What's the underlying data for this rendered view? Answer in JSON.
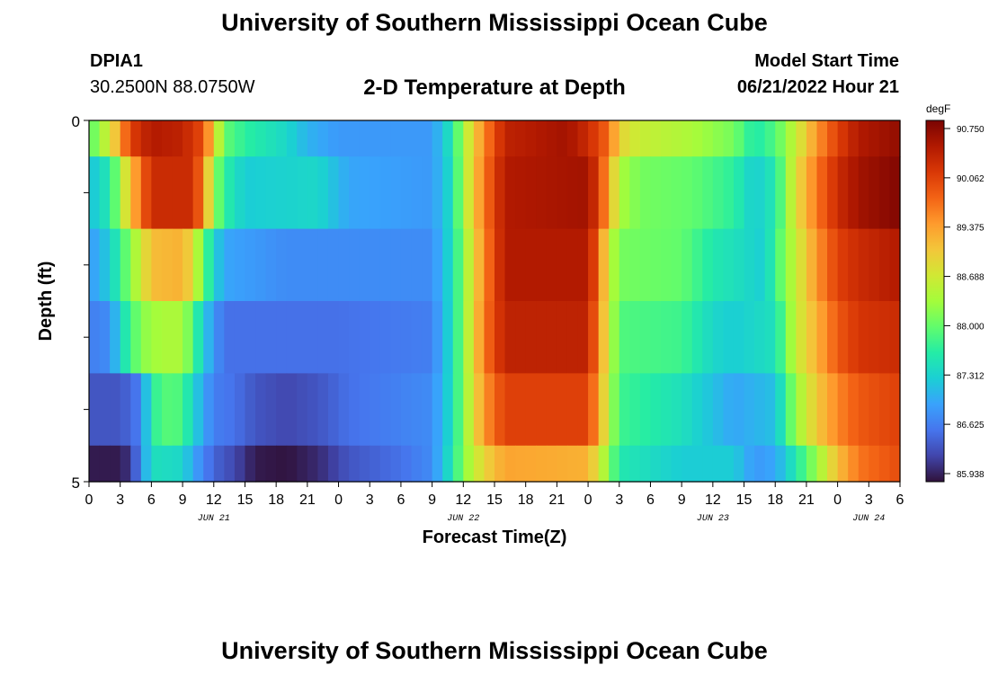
{
  "header": {
    "title": "University of Southern Mississippi Ocean Cube",
    "station_id": "DPIA1",
    "coordinates": "30.2500N  88.0750W",
    "model_start_label": "Model Start Time",
    "model_start_value": "06/21/2022 Hour 21"
  },
  "footer": {
    "title": "University of Southern Mississippi Ocean Cube"
  },
  "colors": {
    "colormap": [
      "#30123b",
      "#4145ab",
      "#4675ed",
      "#39a2fc",
      "#1bcfd4",
      "#24eca6",
      "#61fc6c",
      "#a4fc3b",
      "#d1e834",
      "#f3c63a",
      "#fe9b2d",
      "#f36315",
      "#d93806",
      "#b11901",
      "#7a0402"
    ]
  },
  "chart_data": {
    "type": "heatmap",
    "title": "2-D Temperature at Depth",
    "xlabel": "Forecast Time(Z)",
    "ylabel": "Depth (ft)",
    "colorbar_unit": "degF",
    "colorbar_ticks": [
      "90.750",
      "90.062",
      "89.375",
      "88.688",
      "88.000",
      "87.312",
      "86.625",
      "85.938"
    ],
    "value_range": [
      85.938,
      90.75
    ],
    "x_range_hours": [
      0,
      78
    ],
    "x_ticks": [
      "0",
      "3",
      "6",
      "9",
      "12",
      "15",
      "18",
      "21",
      "0",
      "3",
      "6",
      "9",
      "12",
      "15",
      "18",
      "21",
      "0",
      "3",
      "6",
      "9",
      "12",
      "15",
      "18",
      "21",
      "0",
      "3",
      "6"
    ],
    "date_labels": [
      {
        "text": "JUN 21",
        "hour": 12
      },
      {
        "text": "JUN 22",
        "hour": 36
      },
      {
        "text": "JUN 23",
        "hour": 60
      },
      {
        "text": "JUN 24",
        "hour": 75
      }
    ],
    "y_range_ft": [
      0,
      5
    ],
    "y_tick_labels": [
      {
        "text": "0",
        "depth": 0
      },
      {
        "text": "5",
        "depth": 5
      }
    ],
    "layer_edges_ft": [
      0,
      0.5,
      1.5,
      2.5,
      3.5,
      4.5,
      5
    ],
    "series": [
      {
        "name": "layer-1",
        "keyframes": [
          [
            0,
            87.9
          ],
          [
            2,
            88.7
          ],
          [
            4,
            90.0
          ],
          [
            6,
            90.4
          ],
          [
            9,
            90.3
          ],
          [
            11,
            89.9
          ],
          [
            13,
            88.0
          ],
          [
            15,
            87.7
          ],
          [
            19,
            87.4
          ],
          [
            21,
            87.1
          ],
          [
            24,
            86.9
          ],
          [
            33,
            86.9
          ],
          [
            35,
            87.6
          ],
          [
            36,
            88.4
          ],
          [
            38,
            89.5
          ],
          [
            40,
            90.3
          ],
          [
            46,
            90.5
          ],
          [
            48,
            90.2
          ],
          [
            50,
            89.7
          ],
          [
            51,
            88.9
          ],
          [
            53,
            88.6
          ],
          [
            58,
            88.4
          ],
          [
            62,
            88.1
          ],
          [
            64,
            87.6
          ],
          [
            66,
            87.9
          ],
          [
            68,
            88.6
          ],
          [
            70,
            89.4
          ],
          [
            72,
            90.0
          ],
          [
            74,
            90.4
          ],
          [
            78,
            90.6
          ]
        ]
      },
      {
        "name": "layer-2",
        "keyframes": [
          [
            0,
            87.2
          ],
          [
            2,
            87.6
          ],
          [
            4,
            89.1
          ],
          [
            6,
            90.2
          ],
          [
            10,
            90.2
          ],
          [
            11,
            89.5
          ],
          [
            12,
            88.3
          ],
          [
            13,
            87.7
          ],
          [
            15,
            87.3
          ],
          [
            22,
            87.4
          ],
          [
            25,
            87.0
          ],
          [
            33,
            86.9
          ],
          [
            35,
            87.5
          ],
          [
            36,
            88.4
          ],
          [
            38,
            89.6
          ],
          [
            40,
            90.4
          ],
          [
            48,
            90.5
          ],
          [
            49,
            90.0
          ],
          [
            50,
            89.3
          ],
          [
            51,
            88.4
          ],
          [
            53,
            88.1
          ],
          [
            58,
            88.0
          ],
          [
            62,
            87.7
          ],
          [
            64,
            87.3
          ],
          [
            66,
            87.6
          ],
          [
            68,
            88.8
          ],
          [
            70,
            89.6
          ],
          [
            72,
            90.2
          ],
          [
            74,
            90.5
          ],
          [
            78,
            90.7
          ]
        ]
      },
      {
        "name": "layer-3",
        "keyframes": [
          [
            0,
            86.9
          ],
          [
            2,
            87.3
          ],
          [
            4,
            88.2
          ],
          [
            6,
            89.1
          ],
          [
            9,
            89.2
          ],
          [
            10,
            88.8
          ],
          [
            11,
            88.0
          ],
          [
            12,
            87.4
          ],
          [
            13,
            87.0
          ],
          [
            19,
            86.8
          ],
          [
            33,
            86.8
          ],
          [
            35,
            87.5
          ],
          [
            36,
            88.2
          ],
          [
            38,
            89.5
          ],
          [
            40,
            90.4
          ],
          [
            48,
            90.4
          ],
          [
            49,
            89.7
          ],
          [
            50,
            88.6
          ],
          [
            51,
            88.1
          ],
          [
            57,
            88.0
          ],
          [
            60,
            87.6
          ],
          [
            62,
            87.5
          ],
          [
            65,
            87.3
          ],
          [
            66,
            87.8
          ],
          [
            68,
            88.6
          ],
          [
            70,
            89.4
          ],
          [
            72,
            90.0
          ],
          [
            74,
            90.2
          ],
          [
            78,
            90.4
          ]
        ]
      },
      {
        "name": "layer-4",
        "keyframes": [
          [
            0,
            86.7
          ],
          [
            2,
            86.8
          ],
          [
            3,
            87.4
          ],
          [
            5,
            88.2
          ],
          [
            7,
            88.4
          ],
          [
            9,
            88.4
          ],
          [
            10,
            87.9
          ],
          [
            11,
            87.3
          ],
          [
            12,
            86.9
          ],
          [
            13,
            86.6
          ],
          [
            24,
            86.6
          ],
          [
            33,
            86.7
          ],
          [
            35,
            87.5
          ],
          [
            36,
            88.2
          ],
          [
            38,
            89.6
          ],
          [
            40,
            90.3
          ],
          [
            48,
            90.3
          ],
          [
            49,
            89.5
          ],
          [
            50,
            88.6
          ],
          [
            51,
            87.9
          ],
          [
            57,
            87.8
          ],
          [
            60,
            87.4
          ],
          [
            62,
            87.3
          ],
          [
            66,
            87.5
          ],
          [
            68,
            88.6
          ],
          [
            70,
            89.2
          ],
          [
            72,
            89.8
          ],
          [
            74,
            90.1
          ],
          [
            78,
            90.2
          ]
        ]
      },
      {
        "name": "layer-5",
        "keyframes": [
          [
            0,
            86.4
          ],
          [
            3,
            86.4
          ],
          [
            5,
            86.7
          ],
          [
            6,
            87.7
          ],
          [
            8,
            88.0
          ],
          [
            9,
            87.8
          ],
          [
            10,
            87.4
          ],
          [
            11,
            87.0
          ],
          [
            12,
            86.7
          ],
          [
            14,
            86.6
          ],
          [
            16,
            86.4
          ],
          [
            19,
            86.3
          ],
          [
            22,
            86.4
          ],
          [
            25,
            86.6
          ],
          [
            33,
            86.8
          ],
          [
            35,
            87.5
          ],
          [
            36,
            88.2
          ],
          [
            38,
            89.4
          ],
          [
            40,
            90.0
          ],
          [
            48,
            90.0
          ],
          [
            49,
            89.3
          ],
          [
            50,
            88.5
          ],
          [
            51,
            87.8
          ],
          [
            57,
            87.5
          ],
          [
            60,
            87.2
          ],
          [
            62,
            87.0
          ],
          [
            66,
            87.2
          ],
          [
            68,
            88.3
          ],
          [
            70,
            89.0
          ],
          [
            72,
            89.5
          ],
          [
            74,
            89.8
          ],
          [
            78,
            90.0
          ]
        ]
      },
      {
        "name": "layer-6",
        "keyframes": [
          [
            0,
            86.0
          ],
          [
            3,
            86.0
          ],
          [
            4,
            86.2
          ],
          [
            5,
            86.8
          ],
          [
            6,
            87.5
          ],
          [
            9,
            87.4
          ],
          [
            10,
            87.0
          ],
          [
            12,
            86.5
          ],
          [
            14,
            86.3
          ],
          [
            16,
            86.0
          ],
          [
            19,
            85.95
          ],
          [
            22,
            86.1
          ],
          [
            25,
            86.4
          ],
          [
            30,
            86.6
          ],
          [
            33,
            86.8
          ],
          [
            35,
            87.6
          ],
          [
            36,
            88.2
          ],
          [
            38,
            88.9
          ],
          [
            40,
            89.3
          ],
          [
            48,
            89.2
          ],
          [
            49,
            88.7
          ],
          [
            50,
            88.2
          ],
          [
            51,
            87.6
          ],
          [
            57,
            87.3
          ],
          [
            62,
            87.3
          ],
          [
            64,
            86.9
          ],
          [
            66,
            87.0
          ],
          [
            68,
            87.6
          ],
          [
            70,
            88.3
          ],
          [
            72,
            89.1
          ],
          [
            74,
            89.6
          ],
          [
            78,
            89.9
          ]
        ]
      }
    ]
  }
}
